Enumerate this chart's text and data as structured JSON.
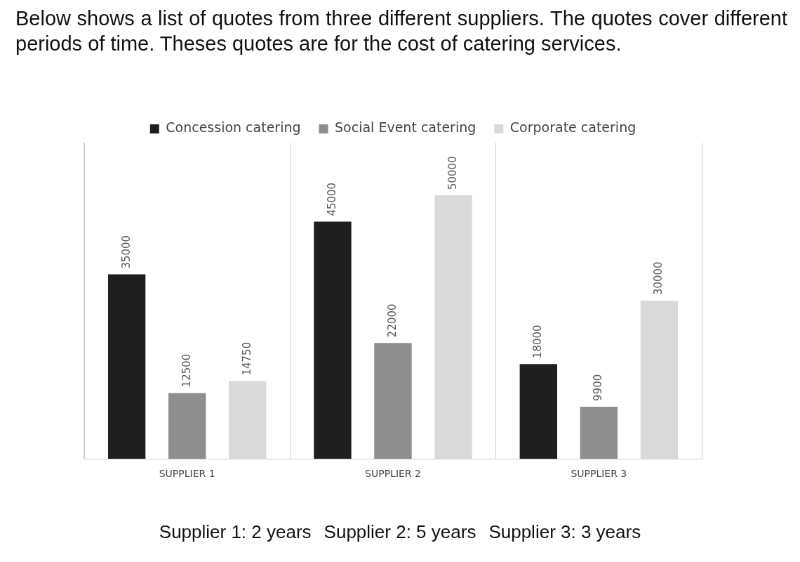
{
  "chart_data": {
    "type": "bar",
    "title": "Below shows a list of quotes from three different suppliers. The quotes cover different periods of time. Theses quotes are for the cost of catering services.",
    "categories": [
      "SUPPLIER 1",
      "SUPPLIER 2",
      "SUPPLIER 3"
    ],
    "series": [
      {
        "name": "Concession catering",
        "color": "#1e1e1e",
        "values": [
          35000,
          45000,
          18000
        ]
      },
      {
        "name": "Social Event catering",
        "color": "#8e8e8e",
        "values": [
          12500,
          22000,
          9900
        ]
      },
      {
        "name": "Corporate catering",
        "color": "#d9d9d9",
        "values": [
          14750,
          50000,
          30000
        ]
      }
    ],
    "data_labels": true,
    "grid": "x",
    "legend": "top",
    "annotations": [
      "Supplier 1: 2 years",
      "Supplier 2: 5 years",
      "Supplier 3: 3 years"
    ]
  }
}
